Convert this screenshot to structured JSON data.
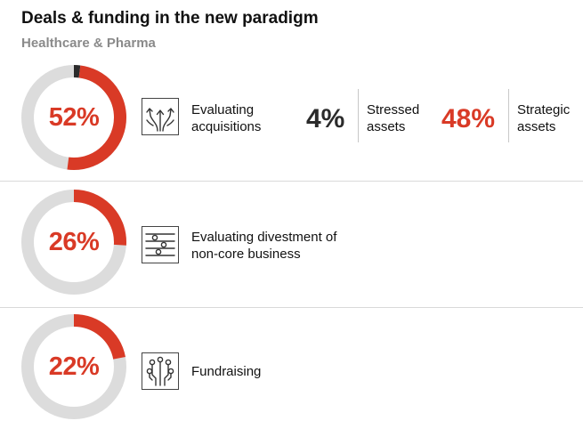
{
  "title": "Deals & funding in the new paradigm",
  "subtitle": "Healthcare & Pharma",
  "colors": {
    "accent": "#d93a26",
    "track": "#dcdcdc",
    "dark": "#2b2b2b"
  },
  "chart_data": {
    "type": "donut",
    "title": "Deals & funding in the new paradigm",
    "subtitle": "Healthcare & Pharma",
    "items": [
      {
        "value": 52,
        "display": "52%",
        "label_line1": "Evaluating",
        "label_line2": "acquisitions",
        "icon": "diverging-arrows-icon",
        "dark_slice": 2,
        "breakdown": [
          {
            "value": 4,
            "display": "4%",
            "line1": "Stressed",
            "line2": "assets",
            "color": "dark"
          },
          {
            "value": 48,
            "display": "48%",
            "line1": "Strategic",
            "line2": "assets",
            "color": "red"
          }
        ]
      },
      {
        "value": 26,
        "display": "26%",
        "label_line1": "Evaluating divestment of",
        "label_line2": "non-core business",
        "icon": "sliders-icon"
      },
      {
        "value": 22,
        "display": "22%",
        "label_line1": "Fundraising",
        "label_line2": "",
        "icon": "circuit-icon"
      }
    ]
  }
}
